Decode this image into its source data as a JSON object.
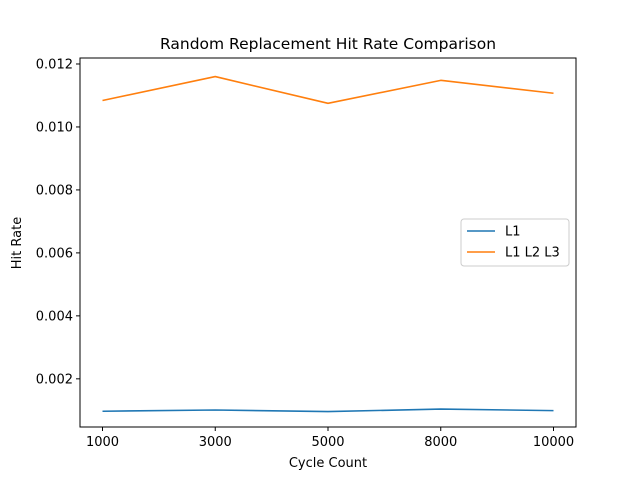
{
  "chart_data": {
    "type": "line",
    "title": "Random Replacement Hit Rate Comparison",
    "xlabel": "Cycle Count",
    "ylabel": "Hit Rate",
    "x": [
      "1000",
      "3000",
      "5000",
      "8000",
      "10000"
    ],
    "xticks": [
      "1000",
      "3000",
      "5000",
      "8000",
      "10000"
    ],
    "ylim": [
      0.00047,
      0.01219
    ],
    "yticks": [
      {
        "value": 0.002,
        "label": "0.002"
      },
      {
        "value": 0.004,
        "label": "0.004"
      },
      {
        "value": 0.006,
        "label": "0.006"
      },
      {
        "value": 0.008,
        "label": "0.008"
      },
      {
        "value": 0.01,
        "label": "0.010"
      },
      {
        "value": 0.012,
        "label": "0.012"
      }
    ],
    "series": [
      {
        "name": "L1",
        "color": "#1f77b4",
        "values": [
          0.00097,
          0.00101,
          0.00096,
          0.00104,
          0.00099
        ]
      },
      {
        "name": "L1 L2 L3",
        "color": "#ff7f0e",
        "values": [
          0.01084,
          0.0116,
          0.01075,
          0.01148,
          0.01107
        ]
      }
    ],
    "grid": false,
    "legend": {
      "position": "center-right"
    }
  }
}
